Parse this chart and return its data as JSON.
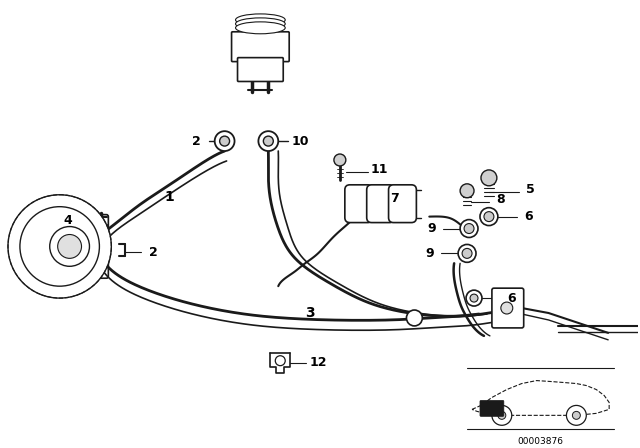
{
  "bg_color": "#ffffff",
  "line_color": "#1a1a1a",
  "label_color": "#000000",
  "fig_width": 6.4,
  "fig_height": 4.48,
  "dpi": 100,
  "watermark": "00003876"
}
